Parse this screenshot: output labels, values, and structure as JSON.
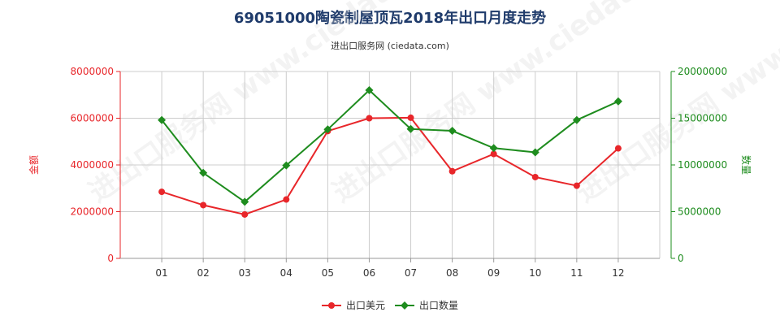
{
  "page": {
    "title": "69051000陶瓷制屋顶瓦2018年出口月度走势",
    "subtitle": "进出口服务网 (ciedata.com)",
    "watermark": "进出口服务网 www.ciedata.com"
  },
  "chart_data": {
    "type": "line",
    "title": "69051000陶瓷制屋顶瓦2018年出口月度走势",
    "subtitle": "进出口服务网 (ciedata.com)",
    "categories": [
      "01",
      "02",
      "03",
      "04",
      "05",
      "06",
      "07",
      "08",
      "09",
      "10",
      "11",
      "12"
    ],
    "series": [
      {
        "name": "出口美元",
        "axis": "left",
        "color": "#e8262a",
        "values": [
          2850000,
          2280000,
          1880000,
          2520000,
          5450000,
          6000000,
          6020000,
          3730000,
          4470000,
          3480000,
          3110000,
          4710000
        ]
      },
      {
        "name": "出口数量",
        "axis": "right",
        "color": "#1e8c1e",
        "values": [
          14800000,
          9150000,
          6050000,
          9950000,
          13800000,
          18000000,
          13850000,
          13650000,
          11800000,
          11350000,
          14800000,
          16800000
        ]
      }
    ],
    "y_left": {
      "label": "金额",
      "ticks": [
        "0",
        "2000000",
        "4000000",
        "6000000",
        "8000000"
      ],
      "range": [
        0,
        8000000
      ]
    },
    "y_right": {
      "label": "数量",
      "ticks": [
        "0",
        "5000000",
        "10000000",
        "15000000",
        "20000000"
      ],
      "range": [
        0,
        20000000
      ]
    },
    "grid": true,
    "legend_position": "bottom"
  }
}
